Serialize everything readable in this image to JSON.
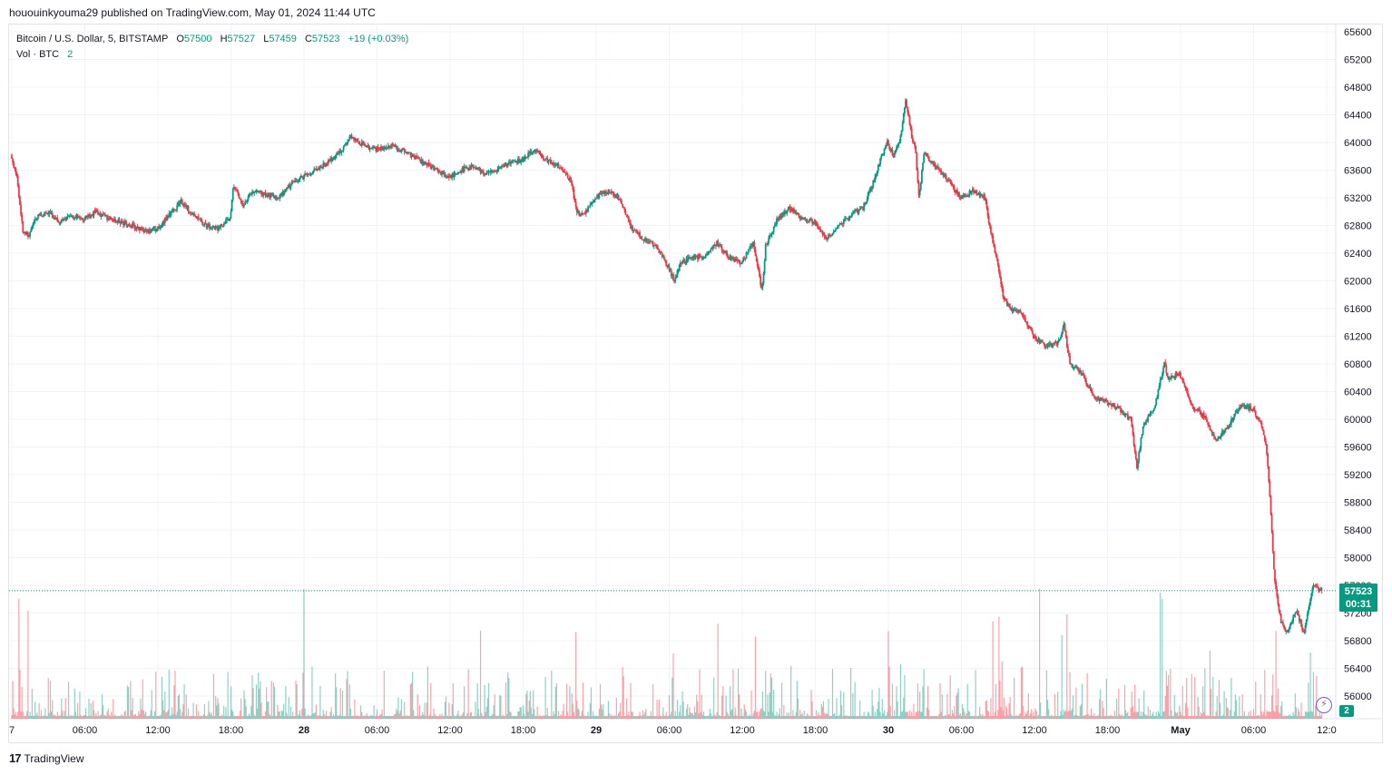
{
  "publisher": "hououinkyouma29 published on TradingView.com, May 01, 2024 11:44 UTC",
  "legend": {
    "symbol": "Bitcoin / U.S. Dollar, 5, BITSTAMP",
    "o_label": "O",
    "o_value": "57500",
    "h_label": "H",
    "h_value": "57527",
    "l_label": "L",
    "l_value": "57459",
    "c_label": "C",
    "c_value": "57523",
    "change": "+19 (+0.03%)",
    "vol_label": "Vol · BTC",
    "vol_value": "2"
  },
  "price_tag": {
    "price": "57523",
    "countdown": "00:31"
  },
  "vol_badge": "2",
  "brand": {
    "logo": "17",
    "name": "TradingView"
  },
  "colors": {
    "up": "#089981",
    "down": "#f23645",
    "wick": "#4a4a4a",
    "grid": "#f0f3fa"
  },
  "chart_data": {
    "type": "candlestick",
    "title": "Bitcoin / U.S. Dollar, 5, BITSTAMP",
    "interval": "5",
    "y_ticks": [
      56000,
      56400,
      56800,
      57200,
      57600,
      58000,
      58400,
      58800,
      59200,
      59600,
      60000,
      60400,
      60800,
      61200,
      61600,
      62000,
      62400,
      62800,
      63200,
      63600,
      64000,
      64400,
      64800,
      65200,
      65600
    ],
    "ylim": [
      55560,
      65700
    ],
    "x_ticks": [
      "7",
      "06:00",
      "12:00",
      "18:00",
      "28",
      "06:00",
      "12:00",
      "18:00",
      "29",
      "06:00",
      "12:00",
      "18:00",
      "30",
      "06:00",
      "12:00",
      "18:00",
      "May",
      "06:00",
      "12:0"
    ],
    "x_tick_hours": [
      0,
      6,
      12,
      18,
      24,
      30,
      36,
      42,
      48,
      54,
      60,
      66,
      72,
      78,
      84,
      90,
      96,
      102,
      108
    ],
    "bold_ticks": [
      "28",
      "29",
      "30",
      "May"
    ],
    "x_range_hours": [
      0,
      107.6
    ],
    "last_price": 57523,
    "price_keypoints": [
      [
        0,
        63820
      ],
      [
        0.5,
        63500
      ],
      [
        1,
        62700
      ],
      [
        1.5,
        62650
      ],
      [
        2,
        62900
      ],
      [
        3,
        63000
      ],
      [
        4,
        62850
      ],
      [
        5,
        62950
      ],
      [
        6,
        62900
      ],
      [
        7,
        63000
      ],
      [
        8,
        62900
      ],
      [
        9,
        62850
      ],
      [
        10,
        62800
      ],
      [
        11,
        62700
      ],
      [
        12,
        62750
      ],
      [
        13,
        62950
      ],
      [
        14,
        63150
      ],
      [
        15,
        62950
      ],
      [
        16,
        62800
      ],
      [
        17,
        62750
      ],
      [
        18,
        62900
      ],
      [
        18.3,
        63400
      ],
      [
        19,
        63100
      ],
      [
        20,
        63300
      ],
      [
        21,
        63250
      ],
      [
        22,
        63200
      ],
      [
        23,
        63400
      ],
      [
        24,
        63500
      ],
      [
        25,
        63600
      ],
      [
        26,
        63700
      ],
      [
        27,
        63850
      ],
      [
        28,
        64100
      ],
      [
        29,
        63950
      ],
      [
        30,
        63900
      ],
      [
        31,
        63950
      ],
      [
        32,
        63900
      ],
      [
        33,
        63800
      ],
      [
        34,
        63700
      ],
      [
        35,
        63600
      ],
      [
        36,
        63500
      ],
      [
        37,
        63600
      ],
      [
        38,
        63650
      ],
      [
        39,
        63550
      ],
      [
        40,
        63600
      ],
      [
        41,
        63700
      ],
      [
        42,
        63750
      ],
      [
        43,
        63900
      ],
      [
        44,
        63750
      ],
      [
        45,
        63650
      ],
      [
        46,
        63450
      ],
      [
        46.5,
        63000
      ],
      [
        47,
        62950
      ],
      [
        48,
        63200
      ],
      [
        49,
        63300
      ],
      [
        50,
        63200
      ],
      [
        51,
        62750
      ],
      [
        52,
        62600
      ],
      [
        53,
        62500
      ],
      [
        54,
        62200
      ],
      [
        54.5,
        62000
      ],
      [
        55,
        62250
      ],
      [
        56,
        62350
      ],
      [
        57,
        62350
      ],
      [
        58,
        62550
      ],
      [
        59,
        62350
      ],
      [
        60,
        62250
      ],
      [
        61,
        62550
      ],
      [
        61.7,
        61850
      ],
      [
        62,
        62500
      ],
      [
        63,
        62900
      ],
      [
        64,
        63050
      ],
      [
        65,
        62900
      ],
      [
        66,
        62850
      ],
      [
        67,
        62600
      ],
      [
        67.5,
        62700
      ],
      [
        68,
        62800
      ],
      [
        69,
        62950
      ],
      [
        70,
        63050
      ],
      [
        71,
        63500
      ],
      [
        71.5,
        63800
      ],
      [
        72,
        64000
      ],
      [
        72.5,
        63800
      ],
      [
        73,
        64000
      ],
      [
        73.5,
        64600
      ],
      [
        74,
        64100
      ],
      [
        74.3,
        63900
      ],
      [
        74.6,
        63200
      ],
      [
        75,
        63850
      ],
      [
        76,
        63650
      ],
      [
        77,
        63450
      ],
      [
        78,
        63200
      ],
      [
        79,
        63300
      ],
      [
        80,
        63200
      ],
      [
        80.5,
        62700
      ],
      [
        81,
        62300
      ],
      [
        81.5,
        61800
      ],
      [
        82,
        61600
      ],
      [
        83,
        61550
      ],
      [
        84,
        61200
      ],
      [
        85,
        61050
      ],
      [
        86,
        61100
      ],
      [
        86.5,
        61350
      ],
      [
        87,
        60800
      ],
      [
        88,
        60650
      ],
      [
        89,
        60300
      ],
      [
        90,
        60250
      ],
      [
        91,
        60150
      ],
      [
        92,
        60000
      ],
      [
        92.5,
        59300
      ],
      [
        93,
        59900
      ],
      [
        94,
        60200
      ],
      [
        94.8,
        60850
      ],
      [
        95,
        60600
      ],
      [
        96,
        60650
      ],
      [
        97,
        60200
      ],
      [
        98,
        60050
      ],
      [
        99,
        59700
      ],
      [
        100,
        59900
      ],
      [
        101,
        60200
      ],
      [
        102,
        60150
      ],
      [
        102.8,
        59900
      ],
      [
        103.2,
        59500
      ],
      [
        103.5,
        58600
      ],
      [
        103.8,
        57700
      ],
      [
        104.3,
        57100
      ],
      [
        104.8,
        56900
      ],
      [
        105.2,
        57050
      ],
      [
        105.6,
        57250
      ],
      [
        106.2,
        56900
      ],
      [
        106.6,
        57300
      ],
      [
        107,
        57600
      ],
      [
        107.6,
        57523
      ]
    ]
  }
}
